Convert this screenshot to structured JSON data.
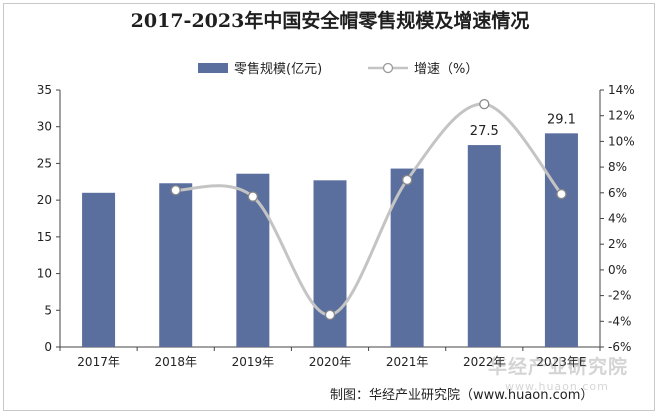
{
  "chart_data": {
    "type": "bar+line",
    "title": "2017-2023年中国安全帽零售规模及增速情况",
    "categories": [
      "2017年",
      "2018年",
      "2019年",
      "2020年",
      "2021年",
      "2022年",
      "2023年E"
    ],
    "series": [
      {
        "name": "零售规模(亿元)",
        "type": "bar",
        "axis": "left",
        "values": [
          21.0,
          22.3,
          23.6,
          22.7,
          24.3,
          27.5,
          29.1
        ],
        "data_labels": [
          "",
          "",
          "",
          "",
          "",
          "27.5",
          "29.1"
        ],
        "color": "#5b6f9e"
      },
      {
        "name": "增速（%）",
        "type": "line",
        "axis": "right",
        "values": [
          null,
          6.2,
          5.7,
          -3.5,
          7.0,
          12.9,
          5.9
        ],
        "color": "#c4c4c4",
        "marker_color": "#ffffff"
      }
    ],
    "y_left": {
      "min": 0,
      "max": 35,
      "step": 5,
      "ticks": [
        "0",
        "5",
        "10",
        "15",
        "20",
        "25",
        "30",
        "35"
      ]
    },
    "y_right": {
      "min": -6,
      "max": 14,
      "step": 2,
      "ticks": [
        "-6%",
        "-4%",
        "-2%",
        "0%",
        "2%",
        "4%",
        "6%",
        "8%",
        "10%",
        "12%",
        "14%"
      ]
    },
    "legend_position": "top-center",
    "grid": false
  },
  "credit": "制图：华经产业研究院（www.huaon.com）",
  "watermark": {
    "text": "华经产业研究院",
    "url": "www.huaon.com"
  }
}
